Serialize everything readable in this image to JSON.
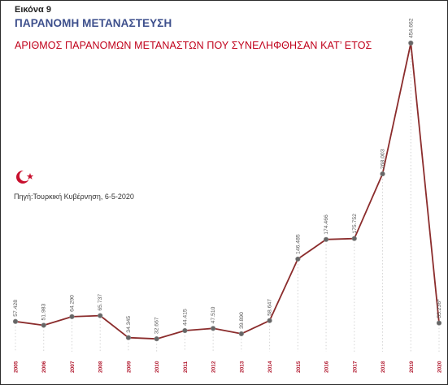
{
  "header": {
    "figure_label": "Εικόνα 9",
    "heading": "ΠΑΡΑΝΟΜΗ ΜΕΤΑΝΑΣΤΕΥΣΗ"
  },
  "source": "Πηγή:Τουρκική Κυβέρνηση, 6-5-2020",
  "icons": {
    "flag": "turkish-crescent-star-icon"
  },
  "colors": {
    "line": "#8b2c2c",
    "point": "#666666",
    "title": "#c0001a",
    "heading": "#3d4f8c",
    "tick": "#b0162c"
  },
  "chart_data": {
    "type": "line",
    "title": "ΑΡΙΘΜΟΣ ΠΑΡΑΝΟΜΩΝ ΜΕΤΑΝΑΣΤΩΝ ΠΟΥ ΣΥΝΕΛΗΦΘΗΣΑΝ ΚΑΤ’ ΕΤΟΣ",
    "x": [
      "2005",
      "2006",
      "2007",
      "2008",
      "2009",
      "2010",
      "2011",
      "2012",
      "2013",
      "2014",
      "2015",
      "2016",
      "2017",
      "2018",
      "2019",
      "2020"
    ],
    "values": [
      57428,
      51983,
      64290,
      65737,
      34345,
      32667,
      44415,
      47510,
      39890,
      58647,
      146485,
      174466,
      175752,
      268003,
      454662,
      55236
    ],
    "labels": [
      "57.428",
      "51.983",
      "64.290",
      "65.737",
      "34.345",
      "32.667",
      "44.415",
      "47.510",
      "39.890",
      "58.647",
      "146.485",
      "174.466",
      "175.752",
      "268.003",
      "454.662",
      "55.236*"
    ],
    "ylim": [
      0,
      500000
    ],
    "grid": "vertical-dotted",
    "legend": "none"
  }
}
